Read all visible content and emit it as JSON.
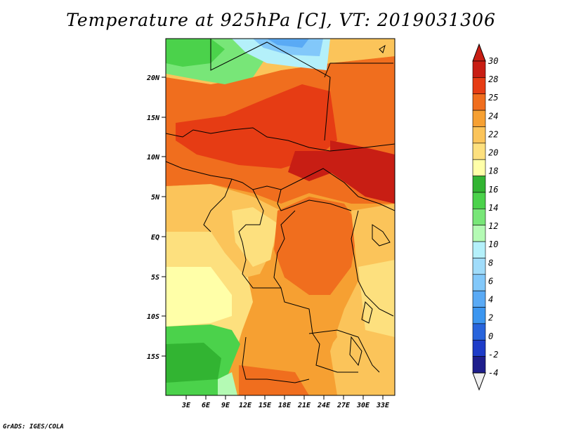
{
  "title": "Temperature at 925hPa [C], VT: 2019031306",
  "footer": "GrADS: IGES/COLA",
  "map": {
    "lon_labels": [
      "3E",
      "6E",
      "9E",
      "12E",
      "15E",
      "18E",
      "21E",
      "24E",
      "27E",
      "30E",
      "33E"
    ],
    "lat_labels": [
      "20N",
      "15N",
      "10N",
      "5N",
      "EQ",
      "5S",
      "10S",
      "15S"
    ]
  },
  "colorbar": {
    "labels": [
      "30",
      "28",
      "25",
      "24",
      "22",
      "20",
      "18",
      "16",
      "14",
      "12",
      "10",
      "8",
      "6",
      "4",
      "2",
      "0",
      "-2",
      "-4"
    ],
    "colors": [
      "#f0f0f0",
      "#1e1e8c",
      "#1e3cc8",
      "#2864dc",
      "#3c96f0",
      "#5aaaf5",
      "#82c8fa",
      "#a0dcfa",
      "#b4f0fa",
      "#b4fab4",
      "#78e678",
      "#4bd24b",
      "#32b432",
      "#ffffa8",
      "#fde07e",
      "#fbc45a",
      "#f6a032",
      "#f06e1e",
      "#e63c14",
      "#c81e14"
    ]
  },
  "colors": {
    "cool_green": "#4bd24b",
    "light_yellow": "#fde07e",
    "orange": "#f6a032",
    "deep_red": "#e63c14",
    "blue": "#82c8fa"
  }
}
